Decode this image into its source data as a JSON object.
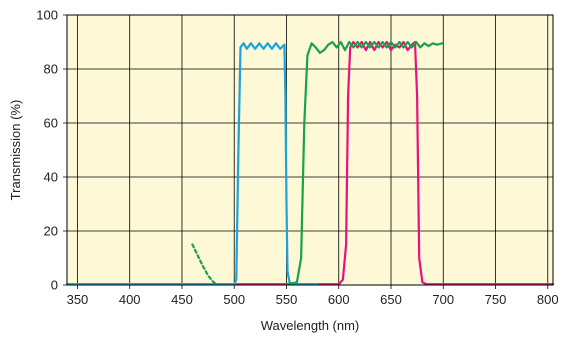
{
  "chart_data": {
    "type": "line",
    "xlabel": "Wavelength (nm)",
    "ylabel": "Transmission (%)",
    "xlim": [
      340,
      805
    ],
    "ylim": [
      0,
      100
    ],
    "x_ticks": [
      350,
      400,
      450,
      500,
      550,
      600,
      650,
      700,
      750,
      800
    ],
    "y_ticks": [
      0,
      20,
      40,
      60,
      80,
      100
    ],
    "grid": true,
    "legend": "none",
    "background": "#fdf8d6",
    "series": [
      {
        "color": "#e8117f",
        "style": "solid",
        "points": [
          [
            340,
            0.3
          ],
          [
            560,
            0.3
          ],
          [
            600,
            0.3
          ],
          [
            604,
            2
          ],
          [
            607,
            15
          ],
          [
            609,
            70
          ],
          [
            611,
            88
          ],
          [
            614,
            90
          ],
          [
            618,
            88
          ],
          [
            622,
            90
          ],
          [
            626,
            87
          ],
          [
            630,
            90
          ],
          [
            634,
            87
          ],
          [
            638,
            90
          ],
          [
            642,
            88
          ],
          [
            646,
            90
          ],
          [
            650,
            87
          ],
          [
            654,
            89
          ],
          [
            658,
            88
          ],
          [
            662,
            90
          ],
          [
            666,
            87
          ],
          [
            670,
            89
          ],
          [
            673,
            90
          ],
          [
            675,
            70
          ],
          [
            677,
            10
          ],
          [
            680,
            1
          ],
          [
            684,
            0.3
          ],
          [
            805,
            0.3
          ]
        ]
      },
      {
        "color": "#1aa3dc",
        "style": "solid",
        "points": [
          [
            340,
            0.3
          ],
          [
            500,
            0.3
          ],
          [
            502,
            2
          ],
          [
            504,
            50
          ],
          [
            506,
            88
          ],
          [
            509,
            89.5
          ],
          [
            512,
            87.5
          ],
          [
            516,
            89.5
          ],
          [
            520,
            87.5
          ],
          [
            524,
            89.5
          ],
          [
            528,
            87.5
          ],
          [
            532,
            89.5
          ],
          [
            536,
            87.5
          ],
          [
            540,
            89.5
          ],
          [
            544,
            87.5
          ],
          [
            548,
            89
          ],
          [
            549,
            70
          ],
          [
            550,
            30
          ],
          [
            551,
            5
          ],
          [
            553,
            1
          ],
          [
            556,
            0.3
          ],
          [
            580,
            0.3
          ]
        ]
      },
      {
        "color": "#16a34a",
        "style": "solid",
        "points": [
          [
            550,
            0.3
          ],
          [
            560,
            1
          ],
          [
            564,
            10
          ],
          [
            567,
            60
          ],
          [
            570,
            85
          ],
          [
            574,
            89.5
          ],
          [
            578,
            88
          ],
          [
            582,
            86
          ],
          [
            586,
            87
          ],
          [
            590,
            89
          ],
          [
            594,
            90
          ],
          [
            598,
            88
          ],
          [
            602,
            90
          ],
          [
            606,
            87
          ],
          [
            610,
            90
          ],
          [
            614,
            88
          ],
          [
            618,
            90
          ],
          [
            622,
            88
          ],
          [
            626,
            90
          ],
          [
            630,
            88
          ],
          [
            634,
            90
          ],
          [
            638,
            88
          ],
          [
            642,
            90
          ],
          [
            646,
            88
          ],
          [
            650,
            90
          ],
          [
            654,
            88
          ],
          [
            658,
            90
          ],
          [
            662,
            88
          ],
          [
            666,
            90
          ],
          [
            670,
            88
          ],
          [
            674,
            90
          ],
          [
            678,
            88
          ],
          [
            682,
            89.5
          ],
          [
            686,
            88.5
          ],
          [
            690,
            89.5
          ],
          [
            694,
            89
          ],
          [
            699,
            89.5
          ]
        ]
      },
      {
        "color": "#16a34a",
        "style": "dashed",
        "points": [
          [
            460,
            15
          ],
          [
            465,
            11
          ],
          [
            470,
            7
          ],
          [
            475,
            3.5
          ],
          [
            479,
            1.5
          ],
          [
            482,
            0.5
          ]
        ]
      }
    ]
  }
}
